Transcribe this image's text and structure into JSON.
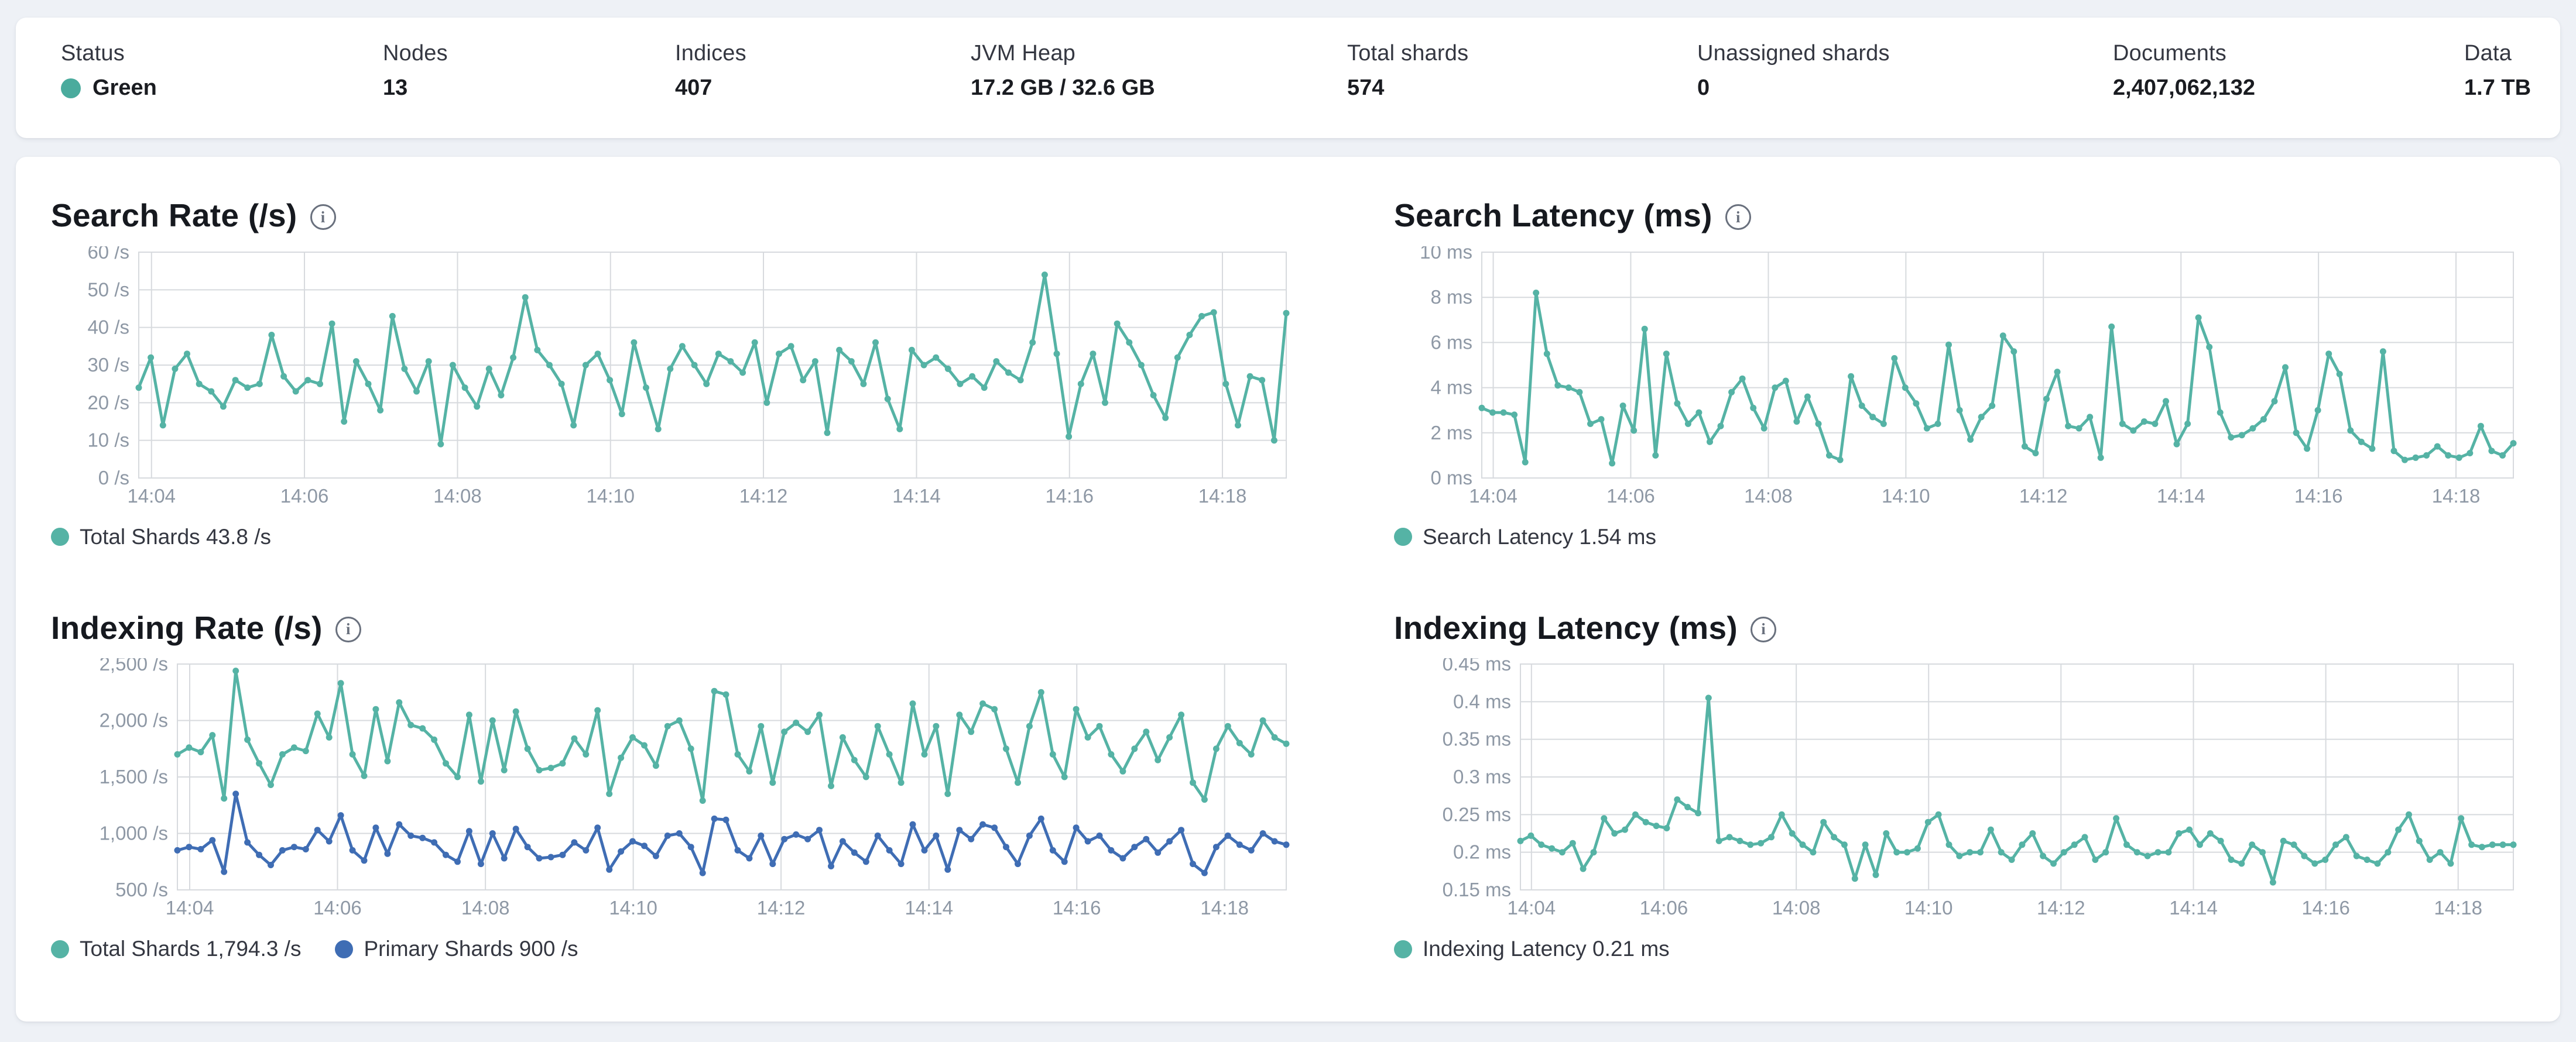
{
  "colors": {
    "teal": "#55b3a5",
    "blue": "#3f6db4",
    "health_green": "#4aab9d",
    "grid": "#d7dade",
    "tick_text": "#8e98a5"
  },
  "status_bar": {
    "items": [
      {
        "label": "Status",
        "value": "Green",
        "dot": true
      },
      {
        "label": "Nodes",
        "value": "13",
        "dot": false
      },
      {
        "label": "Indices",
        "value": "407",
        "dot": false
      },
      {
        "label": "JVM Heap",
        "value": "17.2 GB / 32.6 GB",
        "dot": false
      },
      {
        "label": "Total shards",
        "value": "574",
        "dot": false
      },
      {
        "label": "Unassigned shards",
        "value": "0",
        "dot": false
      },
      {
        "label": "Documents",
        "value": "2,407,062,132",
        "dot": false
      },
      {
        "label": "Data",
        "value": "1.7 TB",
        "dot": false
      }
    ]
  },
  "chart_data": [
    {
      "id": "search_rate",
      "type": "line",
      "title": "Search Rate (/s)",
      "ylabel": "/s",
      "ylim": [
        0,
        60
      ],
      "grid": true,
      "legend_position": "bottom",
      "layout": {
        "gutter_left": 150
      },
      "y_ticks": [
        {
          "value": 60,
          "label": "60 /s"
        },
        {
          "value": 50,
          "label": "50 /s"
        },
        {
          "value": 40,
          "label": "40 /s"
        },
        {
          "value": 30,
          "label": "30 /s"
        },
        {
          "value": 20,
          "label": "20 /s"
        },
        {
          "value": 10,
          "label": "10 /s"
        },
        {
          "value": 0,
          "label": "0 /s"
        }
      ],
      "x_ticks": [
        {
          "pos": 0.0111,
          "label": "14:04"
        },
        {
          "pos": 0.1444,
          "label": "14:06"
        },
        {
          "pos": 0.2778,
          "label": "14:08"
        },
        {
          "pos": 0.4111,
          "label": "14:10"
        },
        {
          "pos": 0.5444,
          "label": "14:12"
        },
        {
          "pos": 0.6778,
          "label": "14:14"
        },
        {
          "pos": 0.8111,
          "label": "14:16"
        },
        {
          "pos": 0.9444,
          "label": "14:18"
        }
      ],
      "series": [
        {
          "name": "Total Shards",
          "color": "#55b3a5",
          "values": [
            24,
            32,
            14,
            29,
            33,
            25,
            23,
            19,
            26,
            24,
            25,
            38,
            27,
            23,
            26,
            25,
            41,
            15,
            31,
            25,
            18,
            43,
            29,
            23,
            31,
            9,
            30,
            24,
            19,
            29,
            22,
            32,
            48,
            34,
            30,
            25,
            14,
            30,
            33,
            26,
            17,
            36,
            24,
            13,
            29,
            35,
            30,
            25,
            33,
            31,
            28,
            36,
            20,
            33,
            35,
            26,
            31,
            12,
            34,
            31,
            25,
            36,
            21,
            13,
            34,
            30,
            32,
            29,
            25,
            27,
            24,
            31,
            28,
            26,
            36,
            54,
            33,
            11,
            25,
            33,
            20,
            41,
            36,
            30,
            22,
            16,
            32,
            38,
            43,
            44,
            25,
            14,
            27,
            26,
            10,
            43.8
          ]
        }
      ],
      "legend": [
        {
          "label": "Total Shards 43.8 /s",
          "color": "#55b3a5"
        }
      ]
    },
    {
      "id": "search_latency",
      "type": "line",
      "title": "Search Latency (ms)",
      "ylabel": "ms",
      "ylim": [
        0,
        10
      ],
      "grid": true,
      "legend_position": "bottom",
      "layout": {
        "gutter_left": 150
      },
      "y_ticks": [
        {
          "value": 10,
          "label": "10 ms"
        },
        {
          "value": 8,
          "label": "8 ms"
        },
        {
          "value": 6,
          "label": "6 ms"
        },
        {
          "value": 4,
          "label": "4 ms"
        },
        {
          "value": 2,
          "label": "2 ms"
        },
        {
          "value": 0,
          "label": "0 ms"
        }
      ],
      "x_ticks": [
        {
          "pos": 0.0111,
          "label": "14:04"
        },
        {
          "pos": 0.1444,
          "label": "14:06"
        },
        {
          "pos": 0.2778,
          "label": "14:08"
        },
        {
          "pos": 0.4111,
          "label": "14:10"
        },
        {
          "pos": 0.5444,
          "label": "14:12"
        },
        {
          "pos": 0.6778,
          "label": "14:14"
        },
        {
          "pos": 0.8111,
          "label": "14:16"
        },
        {
          "pos": 0.9444,
          "label": "14:18"
        }
      ],
      "series": [
        {
          "name": "Search Latency",
          "color": "#55b3a5",
          "values": [
            3.1,
            2.9,
            2.9,
            2.8,
            0.7,
            8.2,
            5.5,
            4.1,
            4.0,
            3.8,
            2.4,
            2.6,
            0.65,
            3.2,
            2.1,
            6.6,
            1.0,
            5.5,
            3.3,
            2.4,
            2.9,
            1.6,
            2.3,
            3.8,
            4.4,
            3.1,
            2.2,
            4.0,
            4.3,
            2.5,
            3.6,
            2.4,
            1.0,
            0.8,
            4.5,
            3.2,
            2.7,
            2.4,
            5.3,
            4.0,
            3.3,
            2.2,
            2.4,
            5.9,
            3.0,
            1.7,
            2.7,
            3.2,
            6.3,
            5.6,
            1.4,
            1.1,
            3.5,
            4.7,
            2.3,
            2.2,
            2.7,
            0.9,
            6.7,
            2.4,
            2.1,
            2.5,
            2.4,
            3.4,
            1.5,
            2.4,
            7.1,
            5.8,
            2.9,
            1.8,
            1.9,
            2.2,
            2.6,
            3.4,
            4.9,
            2.0,
            1.3,
            3.0,
            5.5,
            4.6,
            2.1,
            1.6,
            1.3,
            5.6,
            1.2,
            0.8,
            0.9,
            1.0,
            1.4,
            1.0,
            0.9,
            1.1,
            2.3,
            1.2,
            1.0,
            1.54
          ]
        }
      ],
      "legend": [
        {
          "label": "Search Latency 1.54 ms",
          "color": "#55b3a5"
        }
      ]
    },
    {
      "id": "indexing_rate",
      "type": "line",
      "title": "Indexing Rate (/s)",
      "ylabel": "/s",
      "ylim": [
        500,
        2500
      ],
      "grid": true,
      "legend_position": "bottom",
      "layout": {
        "gutter_left": 216
      },
      "y_ticks": [
        {
          "value": 2500,
          "label": "2,500 /s"
        },
        {
          "value": 2000,
          "label": "2,000 /s"
        },
        {
          "value": 1500,
          "label": "1,500 /s"
        },
        {
          "value": 1000,
          "label": "1,000 /s"
        },
        {
          "value": 500,
          "label": "500 /s"
        }
      ],
      "x_ticks": [
        {
          "pos": 0.0111,
          "label": "14:04"
        },
        {
          "pos": 0.1444,
          "label": "14:06"
        },
        {
          "pos": 0.2778,
          "label": "14:08"
        },
        {
          "pos": 0.4111,
          "label": "14:10"
        },
        {
          "pos": 0.5444,
          "label": "14:12"
        },
        {
          "pos": 0.6778,
          "label": "14:14"
        },
        {
          "pos": 0.8111,
          "label": "14:16"
        },
        {
          "pos": 0.9444,
          "label": "14:18"
        }
      ],
      "series": [
        {
          "name": "Total Shards",
          "color": "#55b3a5",
          "values": [
            1700,
            1760,
            1720,
            1870,
            1310,
            2440,
            1830,
            1620,
            1430,
            1700,
            1760,
            1730,
            2060,
            1850,
            2330,
            1700,
            1510,
            2100,
            1640,
            2160,
            1960,
            1930,
            1830,
            1620,
            1500,
            2050,
            1460,
            2000,
            1560,
            2080,
            1750,
            1560,
            1580,
            1620,
            1840,
            1700,
            2090,
            1350,
            1670,
            1850,
            1780,
            1600,
            1950,
            2000,
            1750,
            1290,
            2260,
            2230,
            1700,
            1550,
            1950,
            1450,
            1900,
            1980,
            1900,
            2050,
            1420,
            1850,
            1650,
            1500,
            1950,
            1700,
            1450,
            2150,
            1700,
            1950,
            1350,
            2050,
            1900,
            2150,
            2100,
            1750,
            1450,
            1950,
            2250,
            1700,
            1500,
            2100,
            1850,
            1950,
            1700,
            1550,
            1750,
            1900,
            1650,
            1850,
            2050,
            1450,
            1300,
            1750,
            1950,
            1800,
            1700,
            2000,
            1850,
            1794.3
          ]
        },
        {
          "name": "Primary Shards",
          "color": "#3f6db4",
          "values": [
            850,
            880,
            860,
            940,
            660,
            1350,
            920,
            810,
            720,
            850,
            880,
            860,
            1030,
            930,
            1160,
            850,
            760,
            1050,
            820,
            1080,
            980,
            960,
            920,
            810,
            750,
            1020,
            730,
            1000,
            780,
            1040,
            880,
            780,
            790,
            810,
            920,
            850,
            1050,
            680,
            840,
            930,
            890,
            800,
            980,
            1000,
            880,
            650,
            1130,
            1120,
            850,
            780,
            980,
            730,
            950,
            990,
            950,
            1030,
            710,
            930,
            830,
            750,
            980,
            850,
            730,
            1080,
            850,
            980,
            680,
            1030,
            950,
            1080,
            1050,
            880,
            730,
            980,
            1130,
            850,
            750,
            1050,
            930,
            980,
            850,
            780,
            880,
            950,
            830,
            930,
            1030,
            730,
            650,
            880,
            980,
            900,
            850,
            1000,
            930,
            900
          ]
        }
      ],
      "legend": [
        {
          "label": "Total Shards 1,794.3 /s",
          "color": "#55b3a5"
        },
        {
          "label": "Primary Shards 900 /s",
          "color": "#3f6db4"
        }
      ]
    },
    {
      "id": "indexing_latency",
      "type": "line",
      "title": "Indexing Latency (ms)",
      "ylabel": "ms",
      "ylim": [
        0.15,
        0.45
      ],
      "grid": true,
      "legend_position": "bottom",
      "layout": {
        "gutter_left": 216
      },
      "y_ticks": [
        {
          "value": 0.45,
          "label": "0.45 ms"
        },
        {
          "value": 0.4,
          "label": "0.4 ms"
        },
        {
          "value": 0.35,
          "label": "0.35 ms"
        },
        {
          "value": 0.3,
          "label": "0.3 ms"
        },
        {
          "value": 0.25,
          "label": "0.25 ms"
        },
        {
          "value": 0.2,
          "label": "0.2 ms"
        },
        {
          "value": 0.15,
          "label": "0.15 ms"
        }
      ],
      "x_ticks": [
        {
          "pos": 0.0111,
          "label": "14:04"
        },
        {
          "pos": 0.1444,
          "label": "14:06"
        },
        {
          "pos": 0.2778,
          "label": "14:08"
        },
        {
          "pos": 0.4111,
          "label": "14:10"
        },
        {
          "pos": 0.5444,
          "label": "14:12"
        },
        {
          "pos": 0.6778,
          "label": "14:14"
        },
        {
          "pos": 0.8111,
          "label": "14:16"
        },
        {
          "pos": 0.9444,
          "label": "14:18"
        }
      ],
      "series": [
        {
          "name": "Indexing Latency",
          "color": "#55b3a5",
          "values": [
            0.215,
            0.222,
            0.21,
            0.205,
            0.2,
            0.212,
            0.178,
            0.2,
            0.245,
            0.225,
            0.23,
            0.25,
            0.24,
            0.235,
            0.232,
            0.27,
            0.26,
            0.252,
            0.405,
            0.215,
            0.22,
            0.215,
            0.21,
            0.212,
            0.22,
            0.25,
            0.225,
            0.21,
            0.2,
            0.24,
            0.22,
            0.21,
            0.165,
            0.21,
            0.17,
            0.225,
            0.2,
            0.2,
            0.205,
            0.24,
            0.25,
            0.21,
            0.195,
            0.2,
            0.2,
            0.23,
            0.2,
            0.19,
            0.21,
            0.225,
            0.195,
            0.185,
            0.2,
            0.21,
            0.22,
            0.19,
            0.2,
            0.245,
            0.21,
            0.2,
            0.195,
            0.2,
            0.2,
            0.225,
            0.23,
            0.21,
            0.225,
            0.215,
            0.19,
            0.185,
            0.21,
            0.2,
            0.16,
            0.215,
            0.21,
            0.195,
            0.185,
            0.19,
            0.21,
            0.22,
            0.195,
            0.19,
            0.185,
            0.2,
            0.23,
            0.25,
            0.215,
            0.19,
            0.2,
            0.185,
            0.245,
            0.21,
            0.207,
            0.21,
            0.21,
            0.21
          ]
        }
      ],
      "legend": [
        {
          "label": "Indexing Latency 0.21 ms",
          "color": "#55b3a5"
        }
      ]
    }
  ]
}
